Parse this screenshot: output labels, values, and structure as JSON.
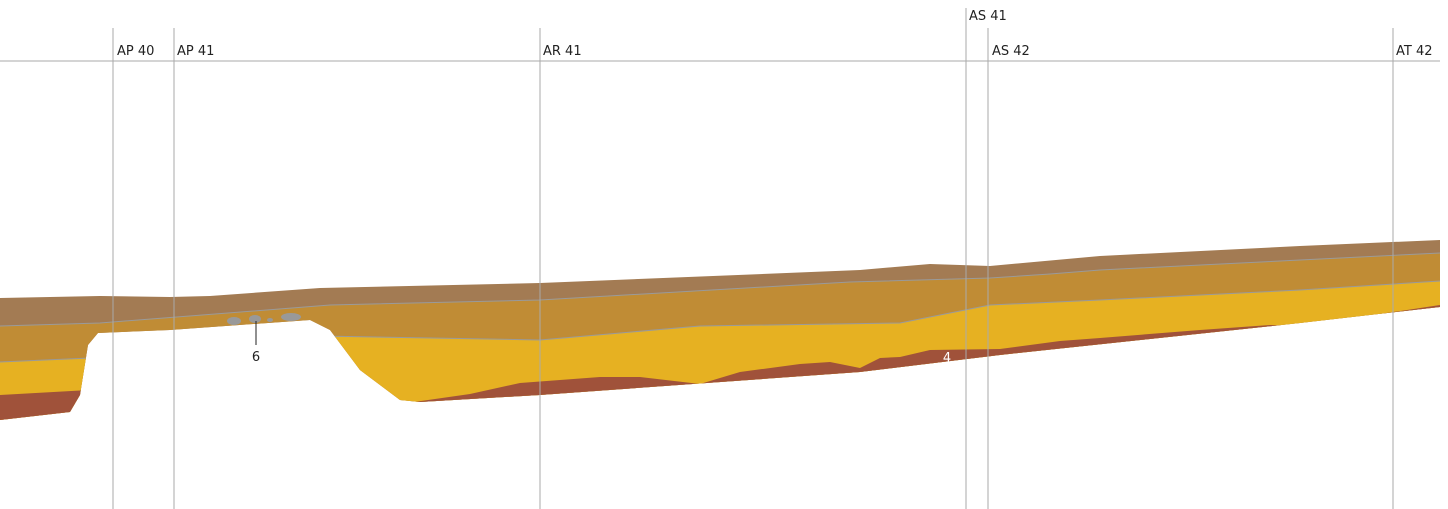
{
  "sections": [
    {
      "label": "AP 40"
    },
    {
      "label": "AP 41"
    },
    {
      "label": "AR 41"
    },
    {
      "label": "AS 41"
    },
    {
      "label": "AS 42"
    },
    {
      "label": "AT 42"
    }
  ],
  "annotations": [
    {
      "label": "6"
    },
    {
      "label": "4"
    }
  ]
}
